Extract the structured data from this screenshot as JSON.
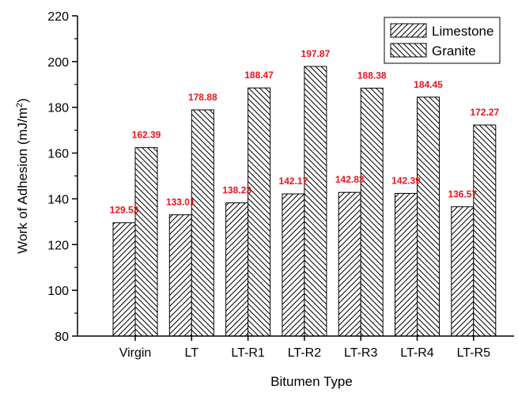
{
  "chart_data": {
    "type": "bar",
    "title": "",
    "xlabel": "Bitumen Type",
    "ylabel": "Work of Adhesion (mJ/m²)",
    "ylabel_parts": {
      "main": "Work of Adhesion (mJ/m",
      "sup": "2",
      "end": ")"
    },
    "ylim": [
      80,
      220
    ],
    "yticks": [
      80,
      100,
      120,
      140,
      160,
      180,
      200,
      220
    ],
    "grid": false,
    "legend_position": "top-right",
    "categories": [
      "Virgin",
      "LT",
      "LT-R1",
      "LT-R2",
      "LT-R3",
      "LT-R4",
      "LT-R5"
    ],
    "series": [
      {
        "name": "Limestone",
        "values": [
          129.53,
          133.01,
          138.23,
          142.17,
          142.83,
          142.39,
          136.57
        ],
        "pattern": "hatch-forward"
      },
      {
        "name": "Granite",
        "values": [
          162.39,
          178.88,
          188.47,
          197.87,
          188.38,
          184.45,
          172.27
        ],
        "pattern": "hatch-backward"
      }
    ],
    "data_label_color": "#e8141c"
  }
}
